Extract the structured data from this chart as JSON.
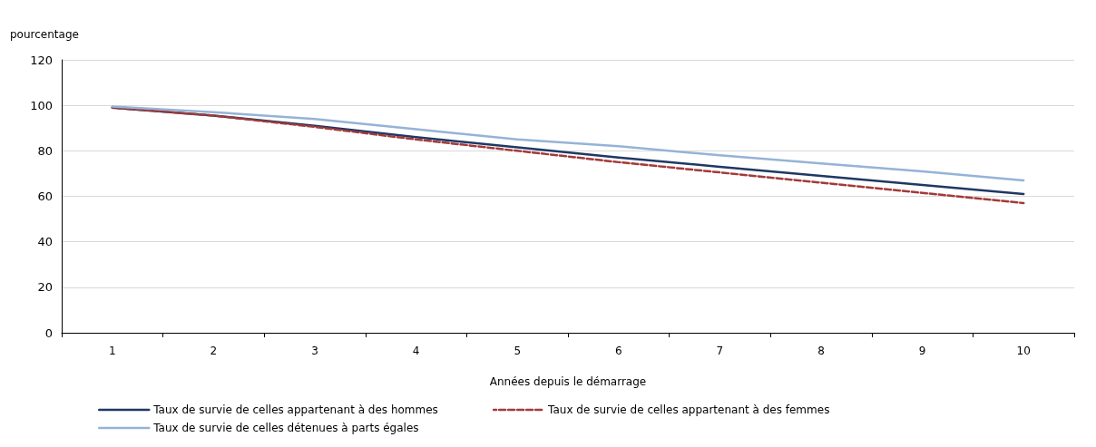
{
  "chart_data": {
    "type": "line",
    "ylabel": "pourcentage",
    "xlabel": "Années depuis le démarrage",
    "categories": [
      "1",
      "2",
      "3",
      "4",
      "5",
      "6",
      "7",
      "8",
      "9",
      "10"
    ],
    "series": [
      {
        "name": "Taux de survie de celles appartenant à des hommes",
        "color": "#1f3864",
        "values": [
          99,
          95.5,
          91,
          86,
          81.5,
          77,
          73,
          69,
          65,
          61
        ]
      },
      {
        "name": "Taux de survie de celles appartenant à des femmes",
        "color": "#a33a3a",
        "line_style": "dashed",
        "values": [
          99,
          95.5,
          90.5,
          85,
          80,
          75,
          70.5,
          66,
          61.5,
          57
        ]
      },
      {
        "name": "Taux de survie de celles détenues à parts égales",
        "color": "#95b3d7",
        "values": [
          99.5,
          97,
          94,
          89.5,
          85,
          82,
          78,
          74.5,
          71,
          67
        ]
      }
    ],
    "ylim": [
      0,
      120
    ],
    "yticks": [
      0,
      20,
      40,
      60,
      80,
      100,
      120
    ],
    "grid": "y",
    "legend": "bottom",
    "marker": "none"
  }
}
